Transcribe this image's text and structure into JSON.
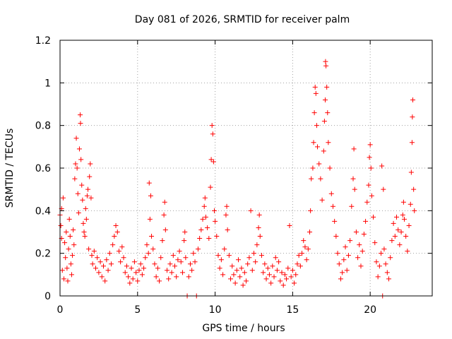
{
  "chart_data": {
    "type": "scatter",
    "title": "Day 081 of 2026, SRMTID for receiver palm",
    "xlabel": "GPS time / hours",
    "ylabel": "SRMTID / TECUs",
    "xlim": [
      0,
      24
    ],
    "ylim": [
      0,
      1.2
    ],
    "xticks": [
      0,
      5,
      10,
      15,
      20
    ],
    "xtick_labels": [
      "0",
      "5",
      "10",
      "15",
      "20"
    ],
    "yticks": [
      0,
      0.2,
      0.4,
      0.6,
      0.8,
      1.0,
      1.2
    ],
    "ytick_labels": [
      "0",
      "0.2",
      "0.4",
      "0.6",
      "0.8",
      "1",
      "1.2"
    ],
    "grid": true,
    "marker": "+",
    "series": [
      {
        "name": "SRMTID",
        "color": "#ff0000",
        "points": [
          [
            0.0,
            0.38
          ],
          [
            0.05,
            0.33
          ],
          [
            0.1,
            0.41
          ],
          [
            0.1,
            0.27
          ],
          [
            0.15,
            0.12
          ],
          [
            0.2,
            0.46
          ],
          [
            0.25,
            0.08
          ],
          [
            0.3,
            0.25
          ],
          [
            0.35,
            0.18
          ],
          [
            0.4,
            0.3
          ],
          [
            0.45,
            0.13
          ],
          [
            0.5,
            0.07
          ],
          [
            0.55,
            0.22
          ],
          [
            0.6,
            0.36
          ],
          [
            0.65,
            0.28
          ],
          [
            0.7,
            0.15
          ],
          [
            0.75,
            0.1
          ],
          [
            0.8,
            0.19
          ],
          [
            0.85,
            0.31
          ],
          [
            0.9,
            0.24
          ],
          [
            0.95,
            0.55
          ],
          [
            1.0,
            0.62
          ],
          [
            1.05,
            0.74
          ],
          [
            1.1,
            0.6
          ],
          [
            1.15,
            0.48
          ],
          [
            1.2,
            0.39
          ],
          [
            1.25,
            0.69
          ],
          [
            1.3,
            0.85
          ],
          [
            1.32,
            0.81
          ],
          [
            1.35,
            0.64
          ],
          [
            1.4,
            0.52
          ],
          [
            1.45,
            0.45
          ],
          [
            1.5,
            0.34
          ],
          [
            1.55,
            0.3
          ],
          [
            1.6,
            0.28
          ],
          [
            1.65,
            0.41
          ],
          [
            1.7,
            0.36
          ],
          [
            1.75,
            0.47
          ],
          [
            1.8,
            0.5
          ],
          [
            1.85,
            0.22
          ],
          [
            1.9,
            0.56
          ],
          [
            1.95,
            0.62
          ],
          [
            2.0,
            0.46
          ],
          [
            2.05,
            0.19
          ],
          [
            2.1,
            0.15
          ],
          [
            2.2,
            0.21
          ],
          [
            2.3,
            0.13
          ],
          [
            2.4,
            0.18
          ],
          [
            2.5,
            0.11
          ],
          [
            2.6,
            0.16
          ],
          [
            2.7,
            0.09
          ],
          [
            2.8,
            0.14
          ],
          [
            2.9,
            0.07
          ],
          [
            3.0,
            0.17
          ],
          [
            3.1,
            0.12
          ],
          [
            3.2,
            0.2
          ],
          [
            3.3,
            0.15
          ],
          [
            3.4,
            0.24
          ],
          [
            3.5,
            0.28
          ],
          [
            3.6,
            0.33
          ],
          [
            3.7,
            0.3
          ],
          [
            3.8,
            0.21
          ],
          [
            3.9,
            0.16
          ],
          [
            4.0,
            0.23
          ],
          [
            4.1,
            0.18
          ],
          [
            4.2,
            0.11
          ],
          [
            4.3,
            0.14
          ],
          [
            4.4,
            0.09
          ],
          [
            4.5,
            0.06
          ],
          [
            4.6,
            0.13
          ],
          [
            4.7,
            0.08
          ],
          [
            4.8,
            0.16
          ],
          [
            4.9,
            0.11
          ],
          [
            5.0,
            0.07
          ],
          [
            5.1,
            0.12
          ],
          [
            5.2,
            0.15
          ],
          [
            5.3,
            0.1
          ],
          [
            5.4,
            0.13
          ],
          [
            5.5,
            0.18
          ],
          [
            5.6,
            0.24
          ],
          [
            5.7,
            0.2
          ],
          [
            5.75,
            0.53
          ],
          [
            5.8,
            0.36
          ],
          [
            5.85,
            0.47
          ],
          [
            5.9,
            0.28
          ],
          [
            6.0,
            0.22
          ],
          [
            6.1,
            0.15
          ],
          [
            6.2,
            0.09
          ],
          [
            6.3,
            0.13
          ],
          [
            6.4,
            0.07
          ],
          [
            6.5,
            0.18
          ],
          [
            6.6,
            0.26
          ],
          [
            6.7,
            0.38
          ],
          [
            6.75,
            0.44
          ],
          [
            6.8,
            0.31
          ],
          [
            6.9,
            0.12
          ],
          [
            7.0,
            0.08
          ],
          [
            7.1,
            0.15
          ],
          [
            7.2,
            0.11
          ],
          [
            7.3,
            0.19
          ],
          [
            7.4,
            0.14
          ],
          [
            7.5,
            0.09
          ],
          [
            7.6,
            0.17
          ],
          [
            7.7,
            0.21
          ],
          [
            7.8,
            0.16
          ],
          [
            7.9,
            0.11
          ],
          [
            8.0,
            0.26
          ],
          [
            8.05,
            0.3
          ],
          [
            8.1,
            0.18
          ],
          [
            8.2,
            0.0
          ],
          [
            8.3,
            0.09
          ],
          [
            8.4,
            0.15
          ],
          [
            8.5,
            0.12
          ],
          [
            8.6,
            0.2
          ],
          [
            8.7,
            0.16
          ],
          [
            8.8,
            0.0
          ],
          [
            8.9,
            0.22
          ],
          [
            9.0,
            0.27
          ],
          [
            9.1,
            0.31
          ],
          [
            9.2,
            0.36
          ],
          [
            9.3,
            0.42
          ],
          [
            9.35,
            0.46
          ],
          [
            9.4,
            0.37
          ],
          [
            9.5,
            0.32
          ],
          [
            9.6,
            0.27
          ],
          [
            9.7,
            0.51
          ],
          [
            9.75,
            0.64
          ],
          [
            9.8,
            0.8
          ],
          [
            9.85,
            0.76
          ],
          [
            9.9,
            0.63
          ],
          [
            9.95,
            0.4
          ],
          [
            10.0,
            0.35
          ],
          [
            10.1,
            0.28
          ],
          [
            10.2,
            0.19
          ],
          [
            10.3,
            0.13
          ],
          [
            10.4,
            0.17
          ],
          [
            10.5,
            0.1
          ],
          [
            10.6,
            0.22
          ],
          [
            10.7,
            0.38
          ],
          [
            10.75,
            0.42
          ],
          [
            10.8,
            0.31
          ],
          [
            10.9,
            0.19
          ],
          [
            11.0,
            0.08
          ],
          [
            11.1,
            0.14
          ],
          [
            11.2,
            0.1
          ],
          [
            11.3,
            0.06
          ],
          [
            11.4,
            0.12
          ],
          [
            11.5,
            0.17
          ],
          [
            11.6,
            0.09
          ],
          [
            11.7,
            0.13
          ],
          [
            11.8,
            0.05
          ],
          [
            11.9,
            0.11
          ],
          [
            12.0,
            0.07
          ],
          [
            12.1,
            0.15
          ],
          [
            12.2,
            0.18
          ],
          [
            12.3,
            0.4
          ],
          [
            12.4,
            0.12
          ],
          [
            12.5,
            0.2
          ],
          [
            12.6,
            0.16
          ],
          [
            12.7,
            0.24
          ],
          [
            12.8,
            0.32
          ],
          [
            12.85,
            0.38
          ],
          [
            12.9,
            0.28
          ],
          [
            13.0,
            0.19
          ],
          [
            13.1,
            0.11
          ],
          [
            13.2,
            0.15
          ],
          [
            13.3,
            0.08
          ],
          [
            13.4,
            0.13
          ],
          [
            13.5,
            0.1
          ],
          [
            13.6,
            0.06
          ],
          [
            13.7,
            0.14
          ],
          [
            13.8,
            0.09
          ],
          [
            13.9,
            0.18
          ],
          [
            14.0,
            0.12
          ],
          [
            14.1,
            0.16
          ],
          [
            14.2,
            0.07
          ],
          [
            14.3,
            0.11
          ],
          [
            14.4,
            0.05
          ],
          [
            14.5,
            0.1
          ],
          [
            14.6,
            0.08
          ],
          [
            14.7,
            0.13
          ],
          [
            14.8,
            0.33
          ],
          [
            14.9,
            0.09
          ],
          [
            15.0,
            0.12
          ],
          [
            15.1,
            0.06
          ],
          [
            15.2,
            0.1
          ],
          [
            15.3,
            0.15
          ],
          [
            15.4,
            0.19
          ],
          [
            15.5,
            0.14
          ],
          [
            15.6,
            0.2
          ],
          [
            15.7,
            0.26
          ],
          [
            15.8,
            0.23
          ],
          [
            15.9,
            0.17
          ],
          [
            16.0,
            0.22
          ],
          [
            16.1,
            0.3
          ],
          [
            16.15,
            0.4
          ],
          [
            16.2,
            0.55
          ],
          [
            16.3,
            0.6
          ],
          [
            16.35,
            0.72
          ],
          [
            16.4,
            0.86
          ],
          [
            16.45,
            0.98
          ],
          [
            16.5,
            0.95
          ],
          [
            16.55,
            0.8
          ],
          [
            16.6,
            0.7
          ],
          [
            16.7,
            0.62
          ],
          [
            16.8,
            0.55
          ],
          [
            16.9,
            0.45
          ],
          [
            17.0,
            0.68
          ],
          [
            17.05,
            0.82
          ],
          [
            17.1,
            0.92
          ],
          [
            17.12,
            1.1
          ],
          [
            17.15,
            1.08
          ],
          [
            17.2,
            0.98
          ],
          [
            17.25,
            0.86
          ],
          [
            17.3,
            0.72
          ],
          [
            17.4,
            0.6
          ],
          [
            17.5,
            0.48
          ],
          [
            17.6,
            0.42
          ],
          [
            17.7,
            0.35
          ],
          [
            17.8,
            0.28
          ],
          [
            17.9,
            0.2
          ],
          [
            18.0,
            0.15
          ],
          [
            18.1,
            0.08
          ],
          [
            18.2,
            0.11
          ],
          [
            18.3,
            0.17
          ],
          [
            18.4,
            0.23
          ],
          [
            18.5,
            0.12
          ],
          [
            18.6,
            0.19
          ],
          [
            18.7,
            0.26
          ],
          [
            18.8,
            0.42
          ],
          [
            18.9,
            0.55
          ],
          [
            18.95,
            0.69
          ],
          [
            19.0,
            0.5
          ],
          [
            19.1,
            0.3
          ],
          [
            19.2,
            0.18
          ],
          [
            19.3,
            0.24
          ],
          [
            19.4,
            0.14
          ],
          [
            19.5,
            0.21
          ],
          [
            19.6,
            0.29
          ],
          [
            19.7,
            0.35
          ],
          [
            19.8,
            0.44
          ],
          [
            19.9,
            0.52
          ],
          [
            19.95,
            0.65
          ],
          [
            20.0,
            0.71
          ],
          [
            20.05,
            0.6
          ],
          [
            20.1,
            0.47
          ],
          [
            20.2,
            0.37
          ],
          [
            20.3,
            0.25
          ],
          [
            20.4,
            0.16
          ],
          [
            20.5,
            0.09
          ],
          [
            20.6,
            0.14
          ],
          [
            20.7,
            0.2
          ],
          [
            20.75,
            0.61
          ],
          [
            20.8,
            0.0
          ],
          [
            20.85,
            0.5
          ],
          [
            20.9,
            0.22
          ],
          [
            21.0,
            0.15
          ],
          [
            21.1,
            0.11
          ],
          [
            21.2,
            0.08
          ],
          [
            21.3,
            0.18
          ],
          [
            21.4,
            0.26
          ],
          [
            21.5,
            0.34
          ],
          [
            21.6,
            0.28
          ],
          [
            21.7,
            0.37
          ],
          [
            21.8,
            0.31
          ],
          [
            21.9,
            0.24
          ],
          [
            22.0,
            0.3
          ],
          [
            22.1,
            0.38
          ],
          [
            22.15,
            0.44
          ],
          [
            22.2,
            0.36
          ],
          [
            22.3,
            0.28
          ],
          [
            22.4,
            0.21
          ],
          [
            22.5,
            0.33
          ],
          [
            22.6,
            0.43
          ],
          [
            22.65,
            0.58
          ],
          [
            22.7,
            0.72
          ],
          [
            22.72,
            0.84
          ],
          [
            22.75,
            0.92
          ],
          [
            22.8,
            0.5
          ],
          [
            22.85,
            0.4
          ]
        ]
      }
    ]
  }
}
